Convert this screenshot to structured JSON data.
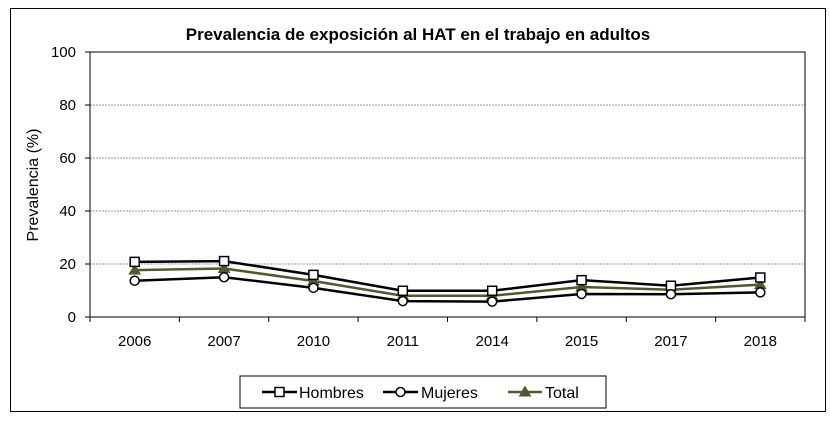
{
  "chart_data": {
    "type": "line",
    "title": "Prevalencia de exposición al HAT en el trabajo en adultos",
    "xlabel": "",
    "ylabel": "Prevalencia (%)",
    "categories": [
      "2006",
      "2007",
      "2010",
      "2011",
      "2014",
      "2015",
      "2017",
      "2018"
    ],
    "ylim": [
      0,
      100
    ],
    "yticks": [
      0,
      20,
      40,
      60,
      80,
      100
    ],
    "grid": true,
    "legend_position": "bottom",
    "series": [
      {
        "name": "Hombres",
        "values": [
          20.8,
          21.1,
          15.9,
          9.9,
          9.9,
          13.9,
          11.8,
          14.9
        ],
        "color": "#000000",
        "marker": "square"
      },
      {
        "name": "Mujeres",
        "values": [
          13.7,
          15.0,
          11.0,
          6.0,
          5.8,
          8.7,
          8.6,
          9.3
        ],
        "color": "#000000",
        "marker": "circle"
      },
      {
        "name": "Total",
        "values": [
          17.7,
          18.3,
          13.6,
          8.0,
          8.0,
          11.3,
          10.3,
          12.2
        ],
        "color": "#4f5a2c",
        "marker": "triangle"
      }
    ]
  }
}
